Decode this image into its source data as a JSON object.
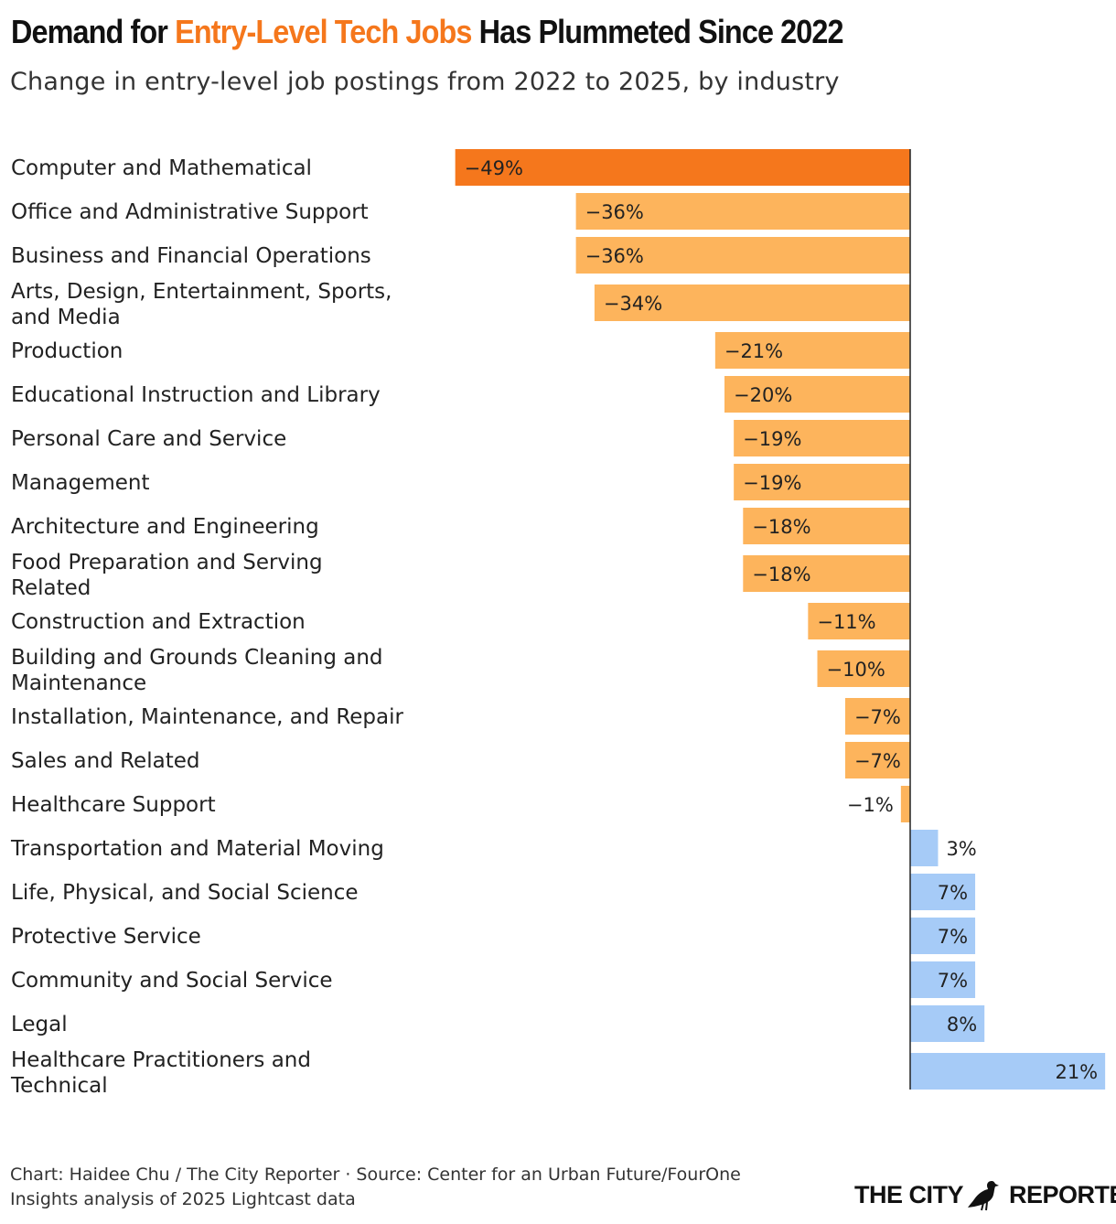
{
  "header": {
    "title_pre": "Demand for ",
    "title_highlight": "Entry-Level Tech Jobs",
    "title_post": " Has Plummeted Since 2022",
    "subtitle": "Change in entry-level job postings from 2022 to 2025, by industry"
  },
  "colors": {
    "highlight": "#f5771c",
    "negative": "#fdb45c",
    "positive": "#a6cbf7",
    "axis": "#222222"
  },
  "chart_data": {
    "type": "bar",
    "orientation": "horizontal",
    "unit": "%",
    "xlim": [
      -49,
      21
    ],
    "categories": [
      [
        "Computer and Mathematical"
      ],
      [
        "Office and Administrative Support"
      ],
      [
        "Business and Financial Operations"
      ],
      [
        "Arts, Design, Entertainment, Sports,",
        "and Media"
      ],
      [
        "Production"
      ],
      [
        "Educational Instruction and Library"
      ],
      [
        "Personal Care and Service"
      ],
      [
        "Management"
      ],
      [
        "Architecture and Engineering"
      ],
      [
        "Food Preparation and Serving",
        "Related"
      ],
      [
        "Construction and Extraction"
      ],
      [
        "Building and Grounds Cleaning and",
        "Maintenance"
      ],
      [
        "Installation, Maintenance, and Repair"
      ],
      [
        "Sales and Related"
      ],
      [
        "Healthcare Support"
      ],
      [
        "Transportation and Material Moving"
      ],
      [
        "Life, Physical, and Social Science"
      ],
      [
        "Protective Service"
      ],
      [
        "Community and Social Service"
      ],
      [
        "Legal"
      ],
      [
        "Healthcare Practitioners and",
        "Technical"
      ]
    ],
    "values": [
      -49,
      -36,
      -36,
      -34,
      -21,
      -20,
      -19,
      -19,
      -18,
      -18,
      -11,
      -10,
      -7,
      -7,
      -1,
      3,
      7,
      7,
      7,
      8,
      21
    ],
    "value_labels": [
      "−49%",
      "−36%",
      "−36%",
      "−34%",
      "−21%",
      "−20%",
      "−19%",
      "−19%",
      "−18%",
      "−18%",
      "−11%",
      "−10%",
      "−7%",
      "−7%",
      "−1%",
      "3%",
      "7%",
      "7%",
      "7%",
      "8%",
      "21%"
    ],
    "highlight_index": 0
  },
  "footer": {
    "credit_line1": "Chart: Haidee Chu / The City Reporter · Source: Center for an Urban Future/FourOne",
    "credit_line2": "Insights analysis of 2025 Lightcast data"
  },
  "logo": {
    "left": "THE CITY",
    "right": "REPORTER",
    "icon": "pigeon-icon"
  }
}
